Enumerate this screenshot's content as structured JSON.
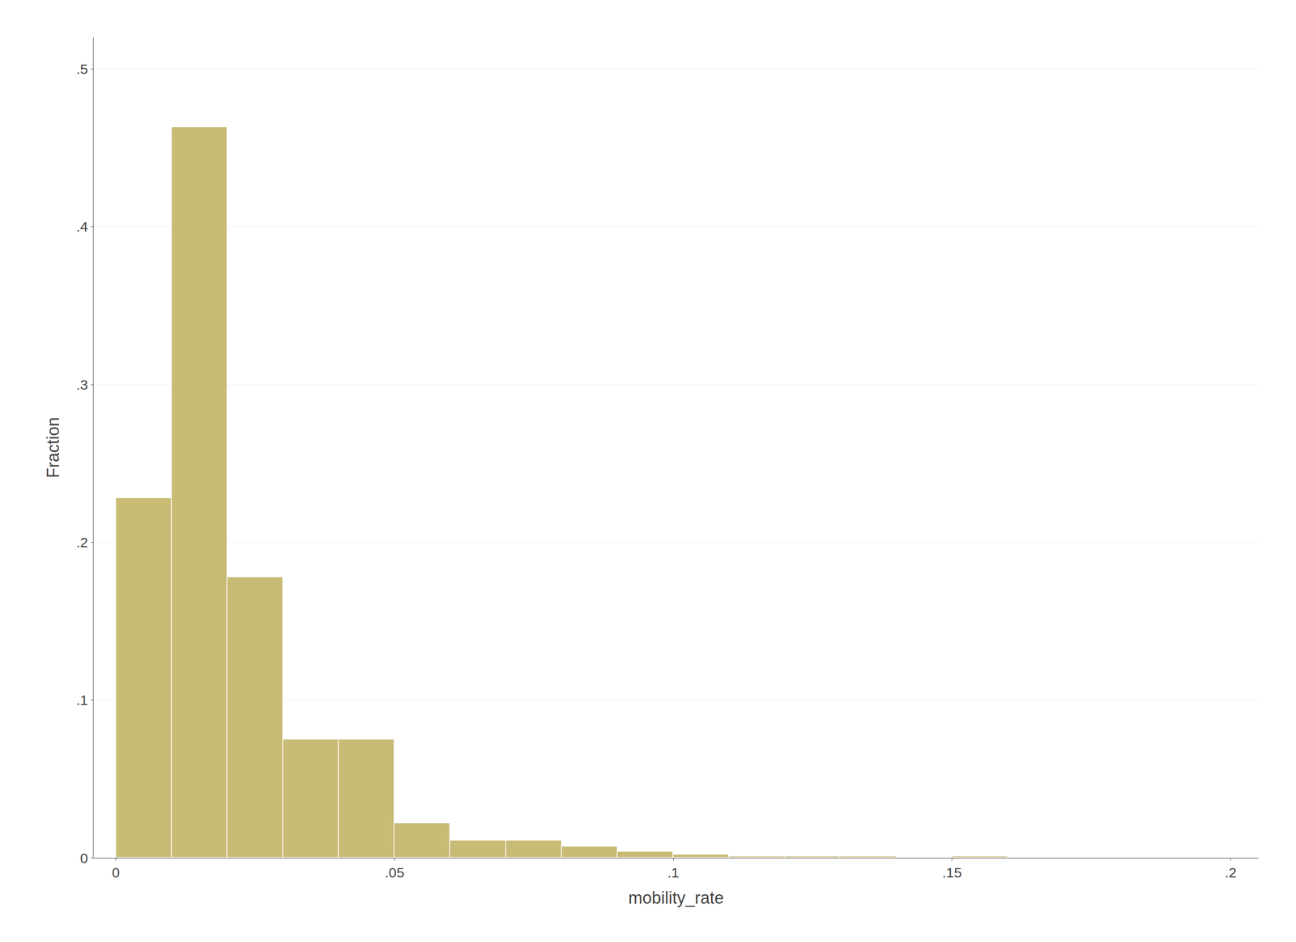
{
  "chart_data": {
    "type": "histogram",
    "x_label": "mobility_rate",
    "y_label": "Fraction",
    "bins": [
      0.0,
      0.01,
      0.02,
      0.03,
      0.04,
      0.05,
      0.06,
      0.07,
      0.08,
      0.09,
      0.1,
      0.11,
      0.12,
      0.13,
      0.14,
      0.15,
      0.16,
      0.17,
      0.18,
      0.19,
      0.2
    ],
    "values": [
      0.228,
      0.463,
      0.178,
      0.075,
      0.075,
      0.022,
      0.011,
      0.011,
      0.007,
      0.004,
      0.002,
      0.001,
      0.001,
      0.001,
      0.0,
      0.001,
      0.0,
      0.0,
      0.0,
      0.0
    ],
    "color": "#c8bb76",
    "xlim": [
      -0.004,
      0.205
    ],
    "ylim": [
      0,
      0.52
    ],
    "xticks": [
      0,
      {
        "value": 0.05,
        "label": ".05"
      },
      {
        "value": 0.1,
        "label": ".1"
      },
      {
        "value": 0.15,
        "label": ".15"
      },
      {
        "value": 0.2,
        "label": ".2"
      }
    ],
    "yticks": [
      0,
      {
        "value": 0.1,
        "label": ".1"
      },
      {
        "value": 0.2,
        "label": ".2"
      },
      {
        "value": 0.3,
        "label": ".3"
      },
      {
        "value": 0.4,
        "label": ".4"
      },
      {
        "value": 0.5,
        "label": ".5"
      }
    ],
    "grid": "y"
  }
}
